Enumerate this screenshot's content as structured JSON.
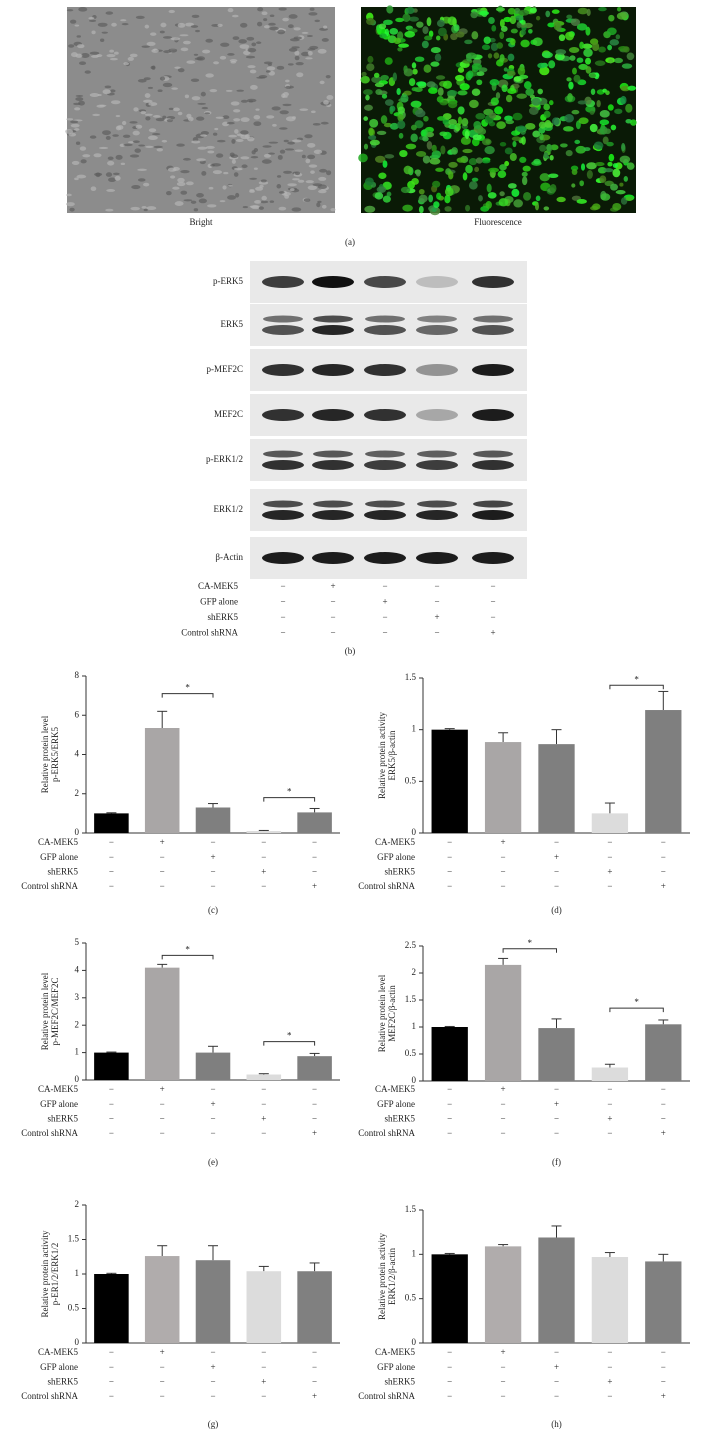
{
  "panel_a": {
    "left_caption": "Bright",
    "right_caption": "Fluorescence",
    "label": "(a)"
  },
  "panel_b": {
    "rows": [
      "p-ERK5",
      "ERK5",
      "p-MEF2C",
      "MEF2C",
      "p-ERK1/2",
      "ERK1/2",
      "β-Actin"
    ],
    "conditions": [
      {
        "name": "CA-MEK5",
        "marks": [
          "−",
          "+",
          "−",
          "−",
          "−"
        ]
      },
      {
        "name": "GFP alone",
        "marks": [
          "−",
          "−",
          "+",
          "−",
          "−"
        ]
      },
      {
        "name": "shERK5",
        "marks": [
          "−",
          "−",
          "−",
          "+",
          "−"
        ]
      },
      {
        "name": "Control shRNA",
        "marks": [
          "−",
          "−",
          "−",
          "−",
          "+"
        ]
      }
    ],
    "label": "(b)"
  },
  "chart_data": [
    {
      "type": "bar",
      "label": "(c)",
      "ylabel": [
        "Relative protein level",
        "p-ERK5/ERK5"
      ],
      "categories": [
        null,
        null,
        null,
        null,
        null
      ],
      "values": [
        1,
        5.35,
        1.3,
        0.1,
        1.05
      ],
      "errors": [
        0.03,
        0.85,
        0.2,
        0.03,
        0.2
      ],
      "colors": [
        "#000000",
        "#a9a6a6",
        "#7f7f7f",
        "#dcdcdc",
        "#7f7f7f"
      ],
      "ylim": [
        0,
        8
      ],
      "yticks": [
        0,
        2,
        4,
        6,
        8
      ],
      "brackets": [
        {
          "between": [
            1,
            2
          ],
          "y": 7.1,
          "label": "*"
        },
        {
          "between": [
            3,
            4
          ],
          "y": 1.8,
          "label": "*"
        }
      ],
      "conditions": [
        {
          "name": "CA-MEK5",
          "marks": [
            "−",
            "+",
            "−",
            "−",
            "−"
          ]
        },
        {
          "name": "GFP alone",
          "marks": [
            "−",
            "−",
            "+",
            "−",
            "−"
          ]
        },
        {
          "name": "shERK5",
          "marks": [
            "−",
            "−",
            "−",
            "+",
            "−"
          ]
        },
        {
          "name": "Control shRNA",
          "marks": [
            "−",
            "−",
            "−",
            "−",
            "+"
          ]
        }
      ]
    },
    {
      "type": "bar",
      "label": "(d)",
      "ylabel": [
        "Relative protein activity",
        "ERK5/β-actin"
      ],
      "categories": [
        null,
        null,
        null,
        null,
        null
      ],
      "values": [
        1,
        0.88,
        0.86,
        0.19,
        1.19
      ],
      "errors": [
        0.01,
        0.09,
        0.14,
        0.1,
        0.18
      ],
      "colors": [
        "#000000",
        "#a9a6a6",
        "#7f7f7f",
        "#dcdcdc",
        "#7f7f7f"
      ],
      "ylim": [
        0,
        1.5
      ],
      "yticks": [
        0,
        0.5,
        1,
        1.5
      ],
      "brackets": [
        {
          "between": [
            3,
            4
          ],
          "y": 1.43,
          "label": "*"
        }
      ],
      "conditions": [
        {
          "name": "CA-MEK5",
          "marks": [
            "−",
            "+",
            "−",
            "−",
            "−"
          ]
        },
        {
          "name": "GFP alone",
          "marks": [
            "−",
            "−",
            "+",
            "−",
            "−"
          ]
        },
        {
          "name": "shERK5",
          "marks": [
            "−",
            "−",
            "−",
            "+",
            "−"
          ]
        },
        {
          "name": "Control shRNA",
          "marks": [
            "−",
            "−",
            "−",
            "−",
            "+"
          ]
        }
      ]
    },
    {
      "type": "bar",
      "label": "(e)",
      "ylabel": [
        "Relative protein level",
        "p-MEF2C/MEF2C"
      ],
      "categories": [
        null,
        null,
        null,
        null,
        null
      ],
      "values": [
        1,
        4.1,
        1,
        0.2,
        0.87
      ],
      "errors": [
        0.02,
        0.12,
        0.23,
        0.03,
        0.1
      ],
      "colors": [
        "#000000",
        "#a9a6a6",
        "#7f7f7f",
        "#dcdcdc",
        "#7f7f7f"
      ],
      "ylim": [
        0,
        5
      ],
      "yticks": [
        0,
        1,
        2,
        3,
        4,
        5
      ],
      "brackets": [
        {
          "between": [
            1,
            2
          ],
          "y": 4.55,
          "label": "*"
        },
        {
          "between": [
            3,
            4
          ],
          "y": 1.4,
          "label": "*"
        }
      ],
      "conditions": [
        {
          "name": "CA-MEK5",
          "marks": [
            "−",
            "+",
            "−",
            "−",
            "−"
          ]
        },
        {
          "name": "GFP alone",
          "marks": [
            "−",
            "−",
            "+",
            "−",
            "−"
          ]
        },
        {
          "name": "shERK5",
          "marks": [
            "−",
            "−",
            "−",
            "+",
            "−"
          ]
        },
        {
          "name": "Control shRNA",
          "marks": [
            "−",
            "−",
            "−",
            "−",
            "+"
          ]
        }
      ]
    },
    {
      "type": "bar",
      "label": "(f)",
      "ylabel": [
        "Relative protein level",
        "MEF2C/β-actin"
      ],
      "categories": [
        null,
        null,
        null,
        null,
        null
      ],
      "values": [
        1,
        2.15,
        0.98,
        0.25,
        1.05
      ],
      "errors": [
        0.01,
        0.12,
        0.17,
        0.06,
        0.08
      ],
      "colors": [
        "#000000",
        "#a9a6a6",
        "#7f7f7f",
        "#dcdcdc",
        "#7f7f7f"
      ],
      "ylim": [
        0,
        2.5
      ],
      "yticks": [
        0,
        0.5,
        1,
        1.5,
        2,
        2.5
      ],
      "brackets": [
        {
          "between": [
            1,
            2
          ],
          "y": 2.45,
          "label": "*"
        },
        {
          "between": [
            3,
            4
          ],
          "y": 1.35,
          "label": "*"
        }
      ],
      "conditions": [
        {
          "name": "CA-MEK5",
          "marks": [
            "−",
            "+",
            "−",
            "−",
            "−"
          ]
        },
        {
          "name": "GFP alone",
          "marks": [
            "−",
            "−",
            "+",
            "−",
            "−"
          ]
        },
        {
          "name": "shERK5",
          "marks": [
            "−",
            "−",
            "−",
            "+",
            "−"
          ]
        },
        {
          "name": "Control shRNA",
          "marks": [
            "−",
            "−",
            "−",
            "−",
            "+"
          ]
        }
      ]
    },
    {
      "type": "bar",
      "label": "(g)",
      "ylabel": [
        "Relative protein activity",
        "p-ER1/2/ERK1/2"
      ],
      "categories": [
        null,
        null,
        null,
        null,
        null
      ],
      "values": [
        1,
        1.26,
        1.2,
        1.04,
        1.04
      ],
      "errors": [
        0.01,
        0.15,
        0.21,
        0.07,
        0.12
      ],
      "colors": [
        "#000000",
        "#b0acac",
        "#808080",
        "#dcdcdc",
        "#808080"
      ],
      "ylim": [
        0,
        2
      ],
      "yticks": [
        0,
        0.5,
        1,
        1.5,
        2
      ],
      "brackets": [],
      "conditions": [
        {
          "name": "CA-MEK5",
          "marks": [
            "−",
            "+",
            "−",
            "−",
            "−"
          ]
        },
        {
          "name": "GFP alone",
          "marks": [
            "−",
            "−",
            "+",
            "−",
            "−"
          ]
        },
        {
          "name": "shERK5",
          "marks": [
            "−",
            "−",
            "−",
            "+",
            "−"
          ]
        },
        {
          "name": "Control shRNA",
          "marks": [
            "−",
            "−",
            "−",
            "−",
            "+"
          ]
        }
      ]
    },
    {
      "type": "bar",
      "label": "(h)",
      "ylabel": [
        "Relative protein activity",
        "ERK1/2/β-actin"
      ],
      "categories": [
        null,
        null,
        null,
        null,
        null
      ],
      "values": [
        1,
        1.09,
        1.19,
        0.97,
        0.92
      ],
      "errors": [
        0.01,
        0.02,
        0.13,
        0.05,
        0.08
      ],
      "colors": [
        "#000000",
        "#b0acac",
        "#808080",
        "#dcdcdc",
        "#808080"
      ],
      "ylim": [
        0,
        1.5
      ],
      "yticks": [
        0,
        0.5,
        1,
        1.5
      ],
      "brackets": [],
      "conditions": [
        {
          "name": "CA-MEK5",
          "marks": [
            "−",
            "+",
            "−",
            "−",
            "−"
          ]
        },
        {
          "name": "GFP alone",
          "marks": [
            "−",
            "−",
            "+",
            "−",
            "−"
          ]
        },
        {
          "name": "shERK5",
          "marks": [
            "−",
            "−",
            "−",
            "+",
            "−"
          ]
        },
        {
          "name": "Control shRNA",
          "marks": [
            "−",
            "−",
            "−",
            "−",
            "+"
          ]
        }
      ]
    }
  ]
}
